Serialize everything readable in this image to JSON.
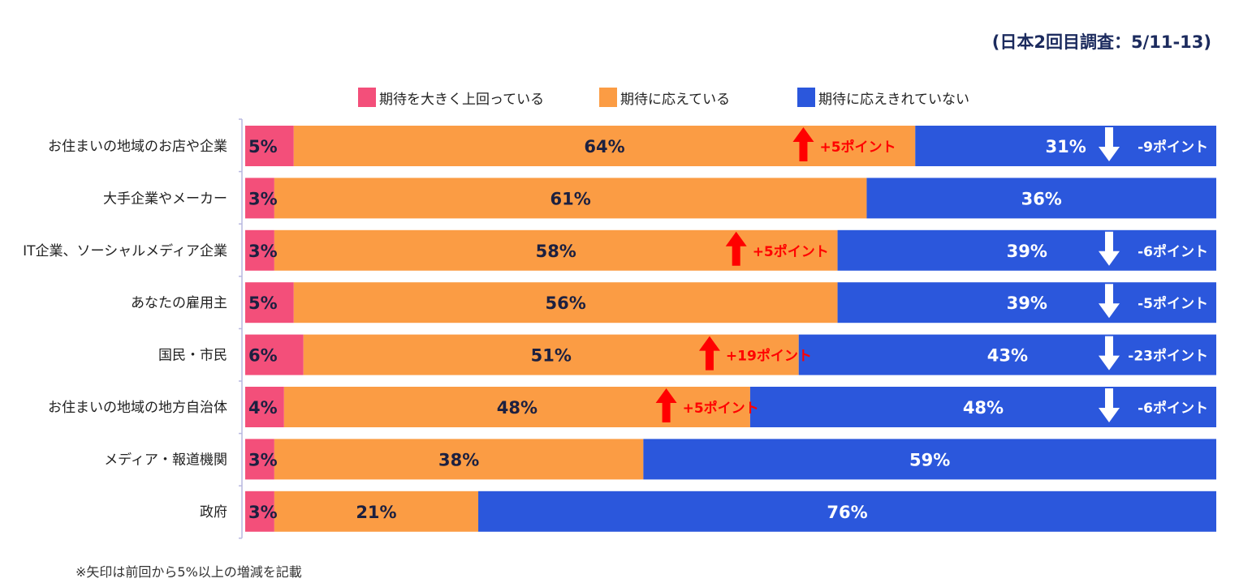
{
  "header": {
    "survey_note": "(日本2回目調査：5/11-13)"
  },
  "footnote": "※矢印は前回から5%以上の増減を記載",
  "colors": {
    "exceed": "#f34f7a",
    "meet": "#fb9c44",
    "notmeet": "#2b57dc",
    "up": "#ff0000",
    "down": "#ffffff",
    "axis": "#b8b8e0"
  },
  "chart_data": {
    "type": "bar",
    "orientation": "horizontal",
    "stacked": true,
    "categories": [
      "お住まいの地域のお店や企業",
      "大手企業やメーカー",
      "IT企業、ソーシャルメディア企業",
      "あなたの雇用主",
      "国民・市民",
      "お住まいの地域の地方自治体",
      "メディア・報道機関",
      "政府"
    ],
    "series": [
      {
        "name": "期待を大きく上回っている",
        "values": [
          5,
          3,
          3,
          5,
          6,
          4,
          3,
          3
        ],
        "labels": [
          "5%",
          "3%",
          "3%",
          "5%",
          "6%",
          "4%",
          "3%",
          "3%"
        ]
      },
      {
        "name": "期待に応えている",
        "values": [
          64,
          61,
          58,
          56,
          51,
          48,
          38,
          21
        ],
        "labels": [
          "64%",
          "61%",
          "58%",
          "56%",
          "51%",
          "48%",
          "38%",
          "21%"
        ]
      },
      {
        "name": "期待に応えきれていない",
        "values": [
          31,
          36,
          39,
          39,
          43,
          48,
          59,
          76
        ],
        "labels": [
          "31%",
          "36%",
          "39%",
          "39%",
          "43%",
          "48%",
          "59%",
          "76%"
        ]
      }
    ],
    "annotations": [
      {
        "row": 0,
        "series": 1,
        "direction": "up",
        "text": "+5ポイント"
      },
      {
        "row": 0,
        "series": 2,
        "direction": "down",
        "text": "-9ポイント"
      },
      {
        "row": 2,
        "series": 1,
        "direction": "up",
        "text": "+5ポイント"
      },
      {
        "row": 2,
        "series": 2,
        "direction": "down",
        "text": "-6ポイント"
      },
      {
        "row": 3,
        "series": 2,
        "direction": "down",
        "text": "-5ポイント"
      },
      {
        "row": 4,
        "series": 1,
        "direction": "up",
        "text": "+19ポイント"
      },
      {
        "row": 4,
        "series": 2,
        "direction": "down",
        "text": "-23ポイント"
      },
      {
        "row": 5,
        "series": 1,
        "direction": "up",
        "text": "+5ポイント"
      },
      {
        "row": 5,
        "series": 2,
        "direction": "down",
        "text": "-6ポイント"
      }
    ],
    "xlim": [
      0,
      100
    ],
    "legend_position": "top",
    "grid": false
  }
}
